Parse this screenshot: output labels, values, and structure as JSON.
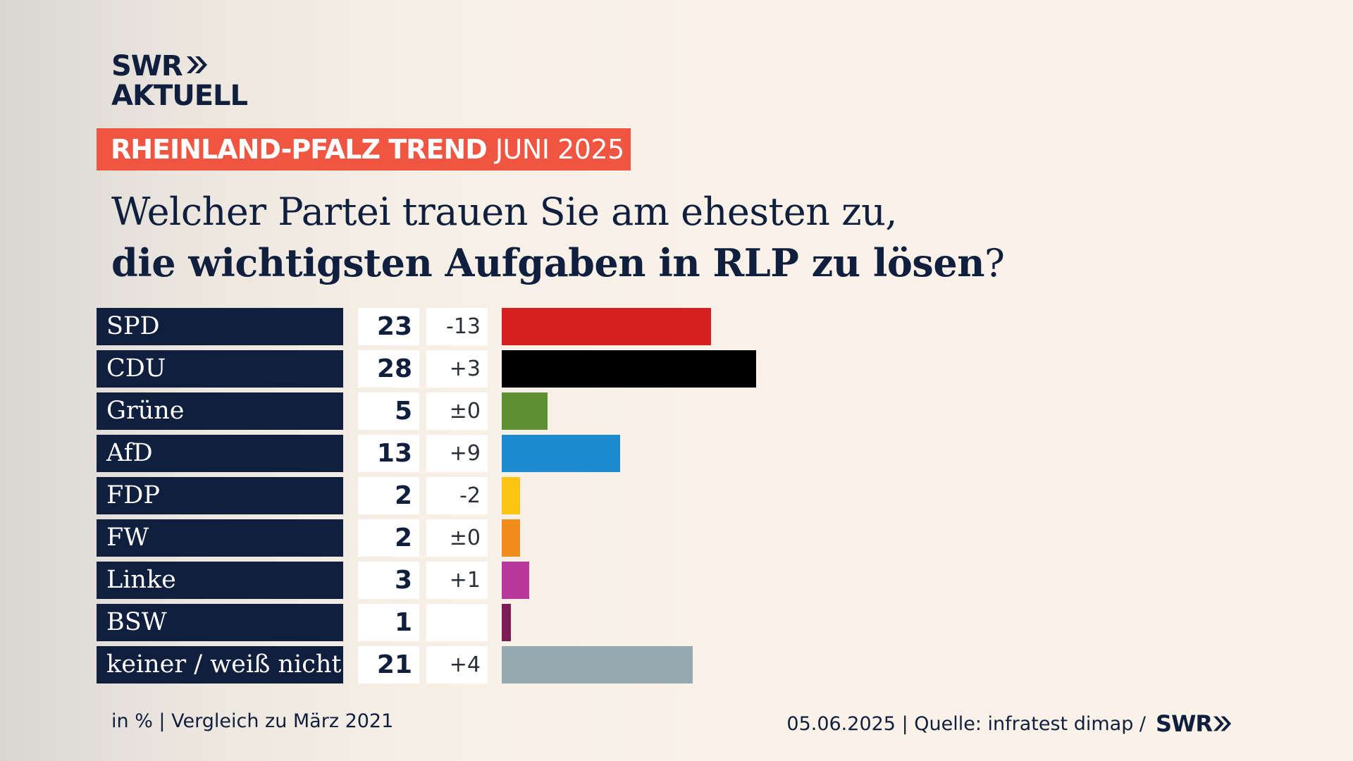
{
  "brand": {
    "line1": "SWR",
    "line2": "AKTUELL",
    "footer_logo": "SWR"
  },
  "badge": {
    "bold": "RHEINLAND-PFALZ TREND",
    "light": "JUNI 2025",
    "color": "#f05541"
  },
  "question": {
    "line1": "Welcher Partei trauen Sie am ehesten zu,",
    "line2": "die wichtigsten Aufgaben in RLP zu lösen",
    "qmark": "?"
  },
  "footer": {
    "left": "in % | Vergleich zu März 2021",
    "right": "05.06.2025 | Quelle: infratest dimap /"
  },
  "chart_data": {
    "type": "bar",
    "orientation": "horizontal",
    "unit": "%",
    "categories": [
      "SPD",
      "CDU",
      "Grüne",
      "AfD",
      "FDP",
      "FW",
      "Linke",
      "BSW",
      "keiner / weiß nicht"
    ],
    "values": [
      23,
      28,
      5,
      13,
      2,
      2,
      3,
      1,
      21
    ],
    "changes": [
      "-13",
      "+3",
      "±0",
      "+9",
      "-2",
      "±0",
      "+1",
      "",
      "+4"
    ],
    "colors": [
      "#d52020",
      "#000000",
      "#5d9133",
      "#1d8bcf",
      "#fcc415",
      "#f28c1c",
      "#b9389b",
      "#7c1e55",
      "#95aab0"
    ]
  }
}
